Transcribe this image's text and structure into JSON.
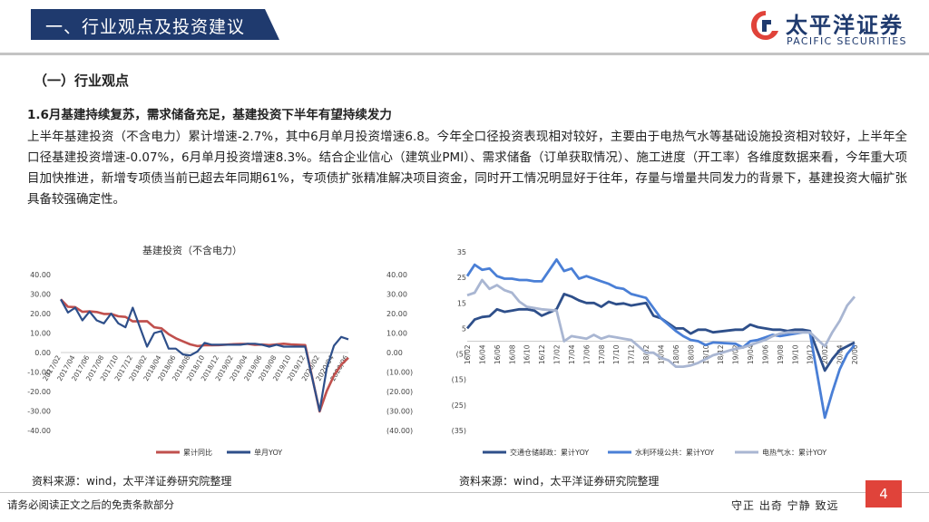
{
  "header": {
    "title": "一、行业观点及投资建议",
    "logo_cn": "太平洋证券",
    "logo_en": "PACIFIC SECURITIES",
    "logo_icon": "pacific-securities-logo-icon",
    "colors": {
      "brand": "#1f3a6e",
      "accent": "#e0433a"
    }
  },
  "section_title": "（一）行业观点",
  "bullet_heading": "1.6月基建持续复苏，需求储备充足，基建投资下半年有望持续发力",
  "paragraph": "上半年基建投资（不含电力）累计增速-2.7%，其中6月单月投资增速6.8。今年全口径投资表现相对较好，主要由于电热气水等基础设施投资相对较好，上半年全口径基建投资增速-0.07%，6月单月投资增速8.3%。结合企业信心（建筑业PMI）、需求储备（订单获取情况）、施工进度（开工率）各维度数据来看，今年重大项目加快推进，新增专项债当前已超去年同期61%，专项债扩张精准解决项目资金，同时开工情况明显好于往年，存量与增量共同发力的背景下，基建投资大幅扩张具备较强确定性。",
  "chart_data": [
    {
      "type": "line",
      "title": "基建投资（不含电力）",
      "x": [
        "2017/02",
        "2017/03",
        "2017/04",
        "2017/05",
        "2017/06",
        "2017/07",
        "2017/08",
        "2017/09",
        "2017/10",
        "2017/11",
        "2017/12",
        "2018/01",
        "2018/02",
        "2018/03",
        "2018/04",
        "2018/05",
        "2018/06",
        "2018/07",
        "2018/08",
        "2018/09",
        "2018/10",
        "2018/11",
        "2018/12",
        "2019/01",
        "2019/02",
        "2019/03",
        "2019/04",
        "2019/05",
        "2019/06",
        "2019/07",
        "2019/08",
        "2019/09",
        "2019/10",
        "2019/11",
        "2019/12",
        "2020/01",
        "2020/02",
        "2020/03",
        "2020/04",
        "2020/05",
        "2020/06"
      ],
      "x_tick_labels": [
        "2017/02",
        "2017/04",
        "2017/06",
        "2017/08",
        "2017/10",
        "2017/12",
        "2018/02",
        "2018/04",
        "2018/06",
        "2018/08",
        "2018/10",
        "2018/12",
        "2019/02",
        "2019/04",
        "2019/06",
        "2019/08",
        "2019/10",
        "2019/12",
        "2020/02",
        "2020/04",
        "2020/06"
      ],
      "left_axis": {
        "ylim": [
          -40,
          40
        ],
        "ticks": [
          "40.00",
          "30.00",
          "20.00",
          "10.00",
          "0.00",
          "-10.00",
          "-20.00",
          "-30.00",
          "-40.00"
        ]
      },
      "right_axis": {
        "ylim": [
          -40,
          40
        ],
        "ticks": [
          "40.00",
          "30.00",
          "20.00",
          "10.00",
          "0.00",
          "(10.00)",
          "(20.00)",
          "(30.00)",
          "(40.00)"
        ]
      },
      "series": [
        {
          "name": "累计同比",
          "color": "#c0504d",
          "axis": "left",
          "values": [
            27.3,
            23.5,
            23.3,
            20.9,
            21.1,
            20.8,
            19.8,
            19.8,
            18.6,
            18.3,
            16.0,
            null,
            16.1,
            13.0,
            12.4,
            9.4,
            7.3,
            5.7,
            4.2,
            3.3,
            3.7,
            3.7,
            3.8,
            null,
            4.3,
            4.4,
            4.4,
            4.0,
            4.1,
            3.8,
            4.2,
            4.5,
            4.2,
            4.0,
            3.8,
            null,
            -30.3,
            -19.7,
            -11.8,
            -6.3,
            -2.7
          ]
        },
        {
          "name": "单月YOY",
          "color": "#2e4f8a",
          "axis": "right",
          "values": [
            27.3,
            20.5,
            23.0,
            16.5,
            21.0,
            16.5,
            15.0,
            20.0,
            15.0,
            13.0,
            23.0,
            null,
            3.0,
            10.0,
            11.0,
            2.0,
            2.0,
            -1.0,
            -1.5,
            0.5,
            5.0,
            4.0,
            4.0,
            null,
            4.0,
            4.0,
            4.5,
            4.5,
            4.0,
            3.0,
            4.0,
            3.0,
            3.0,
            3.0,
            3.0,
            null,
            -30.0,
            -8.0,
            3.5,
            8.0,
            6.8
          ]
        }
      ]
    },
    {
      "type": "line",
      "title": "",
      "x": [
        "16/02",
        "16/03",
        "16/04",
        "16/05",
        "16/06",
        "16/07",
        "16/08",
        "16/09",
        "16/10",
        "16/11",
        "16/12",
        "17/01",
        "17/02",
        "17/03",
        "17/04",
        "17/05",
        "17/06",
        "17/07",
        "17/08",
        "17/09",
        "17/10",
        "17/11",
        "17/12",
        "18/01",
        "18/02",
        "18/03",
        "18/04",
        "18/05",
        "18/06",
        "18/07",
        "18/08",
        "18/09",
        "18/10",
        "18/11",
        "18/12",
        "19/01",
        "19/02",
        "19/03",
        "19/04",
        "19/05",
        "19/06",
        "19/07",
        "19/08",
        "19/09",
        "19/10",
        "19/11",
        "19/12",
        "20/01",
        "20/02",
        "20/03",
        "20/04",
        "20/05",
        "20/06"
      ],
      "x_tick_labels": [
        "16/02",
        "16/04",
        "16/06",
        "16/08",
        "16/10",
        "16/12",
        "17/02",
        "17/04",
        "17/06",
        "17/08",
        "17/10",
        "17/12",
        "18/02",
        "18/04",
        "18/06",
        "18/08",
        "18/10",
        "18/12",
        "19/02",
        "19/04",
        "19/06",
        "19/08",
        "19/10",
        "19/12",
        "20/02",
        "20/04",
        "20/06"
      ],
      "ylim": [
        -35,
        35
      ],
      "y_ticks": [
        "35",
        "25",
        "15",
        "5",
        "(5)",
        "(15)",
        "(25)",
        "(35)"
      ],
      "series": [
        {
          "name": "交通仓储邮政：累计YOY",
          "color": "#2e4f8a",
          "values": [
            5.0,
            8.5,
            9.5,
            9.8,
            12.5,
            11.5,
            12.0,
            12.5,
            12.5,
            12.0,
            10.0,
            null,
            12.5,
            18.5,
            17.5,
            16.0,
            15.0,
            15.0,
            13.5,
            15.5,
            14.5,
            14.8,
            14.0,
            null,
            15.0,
            10.0,
            9.0,
            7.0,
            5.0,
            5.0,
            3.0,
            4.5,
            4.5,
            3.5,
            null,
            null,
            4.5,
            4.5,
            6.5,
            5.5,
            5.0,
            4.5,
            4.5,
            4.0,
            4.5,
            4.5,
            4.0,
            null,
            -11.5,
            -7.0,
            -3.5,
            -2.0,
            -0.5
          ]
        },
        {
          "name": "水利环境公共：累计YOY",
          "color": "#4a7fd6",
          "values": [
            25.5,
            30.0,
            28.0,
            28.5,
            25.5,
            24.5,
            24.5,
            24.0,
            24.0,
            23.5,
            23.5,
            null,
            32.0,
            27.5,
            28.5,
            24.5,
            25.5,
            24.5,
            23.5,
            22.5,
            21.0,
            20.5,
            18.5,
            null,
            17.0,
            13.0,
            9.0,
            6.5,
            4.0,
            2.0,
            0.5,
            0.0,
            -1.5,
            -0.5,
            null,
            null,
            -1.0,
            -2.5,
            0.0,
            0.5,
            1.5,
            2.5,
            2.0,
            2.5,
            3.0,
            3.5,
            3.5,
            null,
            -30.0,
            -20.0,
            -11.0,
            -5.0,
            -1.5
          ]
        },
        {
          "name": "电热气水：累计YOY",
          "color": "#a9b6d2",
          "values": [
            18.0,
            19.0,
            24.0,
            20.5,
            22.0,
            20.0,
            19.0,
            15.5,
            13.5,
            13.0,
            12.5,
            null,
            12.0,
            0.0,
            2.0,
            1.5,
            1.0,
            2.5,
            1.0,
            2.0,
            1.5,
            1.0,
            0.5,
            null,
            -4.5,
            -4.5,
            -6.5,
            -7.5,
            -10.0,
            -10.0,
            -9.5,
            -8.5,
            -7.0,
            -5.5,
            null,
            null,
            -3.0,
            -2.5,
            -1.5,
            -0.5,
            0.5,
            2.0,
            3.0,
            3.5,
            3.5,
            3.5,
            3.5,
            null,
            -2.0,
            3.5,
            8.0,
            14.0,
            17.5
          ]
        }
      ]
    }
  ],
  "chart1_title": "基建投资（不含电力）",
  "source_left": "资料来源：wind，太平洋证券研究院整理",
  "source_right": "资料来源：wind，太平洋证券研究院整理",
  "footer_left": "请务必阅读正文之后的免责条款部分",
  "footer_right": "守正  出奇  宁静  致远",
  "page_number": "4"
}
